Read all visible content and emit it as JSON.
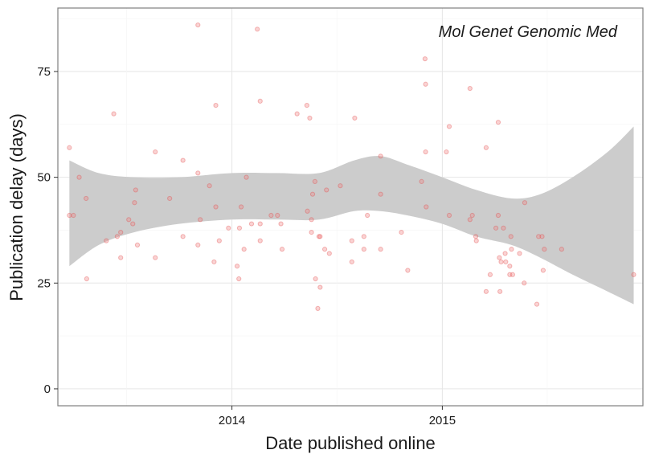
{
  "chart_data": {
    "type": "scatter",
    "title": "Mol Genet Genomic Med",
    "xlabel": "Date published online",
    "ylabel": "Publication delay (days)",
    "x_is_date": true,
    "xlim": [
      "2013-03-05",
      "2015-12-15"
    ],
    "ylim": [
      -4,
      90
    ],
    "x_ticks": [
      {
        "value": "2014-01-01",
        "label": "2014"
      },
      {
        "value": "2015-01-01",
        "label": "2015"
      }
    ],
    "y_ticks": [
      0,
      25,
      50,
      75
    ],
    "grid": true,
    "point_color": "#f08080",
    "band_color": "#cccccc",
    "points": [
      {
        "x": "2013-03-25",
        "y": 57
      },
      {
        "x": "2013-03-25",
        "y": 41
      },
      {
        "x": "2013-04-01",
        "y": 41
      },
      {
        "x": "2013-04-11",
        "y": 50
      },
      {
        "x": "2013-04-23",
        "y": 45
      },
      {
        "x": "2013-04-24",
        "y": 26
      },
      {
        "x": "2013-05-28",
        "y": 35
      },
      {
        "x": "2013-06-10",
        "y": 65
      },
      {
        "x": "2013-06-16",
        "y": 36
      },
      {
        "x": "2013-06-22",
        "y": 31
      },
      {
        "x": "2013-06-22",
        "y": 37
      },
      {
        "x": "2013-07-06",
        "y": 40
      },
      {
        "x": "2013-07-13",
        "y": 39
      },
      {
        "x": "2013-07-16",
        "y": 44
      },
      {
        "x": "2013-07-18",
        "y": 47
      },
      {
        "x": "2013-07-21",
        "y": 34
      },
      {
        "x": "2013-08-21",
        "y": 56
      },
      {
        "x": "2013-08-21",
        "y": 31
      },
      {
        "x": "2013-09-15",
        "y": 45
      },
      {
        "x": "2013-10-08",
        "y": 36
      },
      {
        "x": "2013-10-08",
        "y": 54
      },
      {
        "x": "2013-11-03",
        "y": 86
      },
      {
        "x": "2013-11-03",
        "y": 51
      },
      {
        "x": "2013-11-03",
        "y": 34
      },
      {
        "x": "2013-11-07",
        "y": 40
      },
      {
        "x": "2013-11-23",
        "y": 48
      },
      {
        "x": "2013-12-04",
        "y": 67
      },
      {
        "x": "2013-12-04",
        "y": 43
      },
      {
        "x": "2013-12-10",
        "y": 35
      },
      {
        "x": "2013-12-01",
        "y": 30
      },
      {
        "x": "2013-12-26",
        "y": 38
      },
      {
        "x": "2014-01-10",
        "y": 29
      },
      {
        "x": "2014-01-13",
        "y": 26
      },
      {
        "x": "2014-01-14",
        "y": 38
      },
      {
        "x": "2014-01-17",
        "y": 43
      },
      {
        "x": "2014-01-22",
        "y": 33
      },
      {
        "x": "2014-01-26",
        "y": 50
      },
      {
        "x": "2014-02-04",
        "y": 39
      },
      {
        "x": "2014-02-14",
        "y": 85
      },
      {
        "x": "2014-02-19",
        "y": 35
      },
      {
        "x": "2014-02-19",
        "y": 39
      },
      {
        "x": "2014-02-19",
        "y": 68
      },
      {
        "x": "2014-03-10",
        "y": 41
      },
      {
        "x": "2014-03-21",
        "y": 41
      },
      {
        "x": "2014-03-27",
        "y": 39
      },
      {
        "x": "2014-03-29",
        "y": 33
      },
      {
        "x": "2014-04-24",
        "y": 65
      },
      {
        "x": "2014-05-11",
        "y": 67
      },
      {
        "x": "2014-05-12",
        "y": 42
      },
      {
        "x": "2014-05-16",
        "y": 64
      },
      {
        "x": "2014-05-19",
        "y": 37
      },
      {
        "x": "2014-05-19",
        "y": 40
      },
      {
        "x": "2014-05-21",
        "y": 46
      },
      {
        "x": "2014-05-25",
        "y": 49
      },
      {
        "x": "2014-05-26",
        "y": 26
      },
      {
        "x": "2014-05-30",
        "y": 19
      },
      {
        "x": "2014-06-01",
        "y": 36
      },
      {
        "x": "2014-06-03",
        "y": 36
      },
      {
        "x": "2014-06-03",
        "y": 24
      },
      {
        "x": "2014-06-11",
        "y": 33
      },
      {
        "x": "2014-06-14",
        "y": 47
      },
      {
        "x": "2014-06-19",
        "y": 32
      },
      {
        "x": "2014-07-08",
        "y": 48
      },
      {
        "x": "2014-07-28",
        "y": 35
      },
      {
        "x": "2014-07-28",
        "y": 30
      },
      {
        "x": "2014-08-02",
        "y": 64
      },
      {
        "x": "2014-08-18",
        "y": 36
      },
      {
        "x": "2014-08-18",
        "y": 33
      },
      {
        "x": "2014-08-24",
        "y": 41
      },
      {
        "x": "2014-09-16",
        "y": 55
      },
      {
        "x": "2014-09-16",
        "y": 46
      },
      {
        "x": "2014-09-16",
        "y": 33
      },
      {
        "x": "2014-10-22",
        "y": 37
      },
      {
        "x": "2014-11-02",
        "y": 28
      },
      {
        "x": "2014-11-26",
        "y": 49
      },
      {
        "x": "2014-12-02",
        "y": 78
      },
      {
        "x": "2014-12-03",
        "y": 72
      },
      {
        "x": "2014-12-03",
        "y": 56
      },
      {
        "x": "2014-12-04",
        "y": 43
      },
      {
        "x": "2015-01-08",
        "y": 56
      },
      {
        "x": "2015-01-13",
        "y": 62
      },
      {
        "x": "2015-01-13",
        "y": 41
      },
      {
        "x": "2015-02-18",
        "y": 71
      },
      {
        "x": "2015-02-18",
        "y": 40
      },
      {
        "x": "2015-02-22",
        "y": 41
      },
      {
        "x": "2015-02-28",
        "y": 36
      },
      {
        "x": "2015-03-01",
        "y": 35
      },
      {
        "x": "2015-03-18",
        "y": 57
      },
      {
        "x": "2015-03-18",
        "y": 23
      },
      {
        "x": "2015-03-25",
        "y": 27
      },
      {
        "x": "2015-04-04",
        "y": 38
      },
      {
        "x": "2015-04-08",
        "y": 63
      },
      {
        "x": "2015-04-08",
        "y": 41
      },
      {
        "x": "2015-04-10",
        "y": 31
      },
      {
        "x": "2015-04-11",
        "y": 23
      },
      {
        "x": "2015-04-17",
        "y": 38
      },
      {
        "x": "2015-04-13",
        "y": 30
      },
      {
        "x": "2015-04-20",
        "y": 32
      },
      {
        "x": "2015-04-21",
        "y": 30
      },
      {
        "x": "2015-04-28",
        "y": 29
      },
      {
        "x": "2015-04-28",
        "y": 27
      },
      {
        "x": "2015-04-30",
        "y": 36
      },
      {
        "x": "2015-05-03",
        "y": 27
      },
      {
        "x": "2015-05-01",
        "y": 33
      },
      {
        "x": "2015-05-15",
        "y": 32
      },
      {
        "x": "2015-05-23",
        "y": 25
      },
      {
        "x": "2015-05-24",
        "y": 44
      },
      {
        "x": "2015-06-14",
        "y": 20
      },
      {
        "x": "2015-06-17",
        "y": 36
      },
      {
        "x": "2015-06-23",
        "y": 36
      },
      {
        "x": "2015-06-25",
        "y": 28
      },
      {
        "x": "2015-06-27",
        "y": 33
      },
      {
        "x": "2015-07-27",
        "y": 33
      },
      {
        "x": "2015-11-29",
        "y": 27
      }
    ],
    "smooth_band": [
      {
        "x": "2013-03-25",
        "upper": 54,
        "lower": 29
      },
      {
        "x": "2013-05-15",
        "upper": 51,
        "lower": 34
      },
      {
        "x": "2013-07-15",
        "upper": 50,
        "lower": 37
      },
      {
        "x": "2013-10-01",
        "upper": 50,
        "lower": 39
      },
      {
        "x": "2014-01-01",
        "upper": 51,
        "lower": 40
      },
      {
        "x": "2014-03-20",
        "upper": 51,
        "lower": 40
      },
      {
        "x": "2014-06-01",
        "upper": 51,
        "lower": 40
      },
      {
        "x": "2014-08-01",
        "upper": 54,
        "lower": 42
      },
      {
        "x": "2014-09-15",
        "upper": 55,
        "lower": 42
      },
      {
        "x": "2014-11-01",
        "upper": 53,
        "lower": 41
      },
      {
        "x": "2015-01-01",
        "upper": 50,
        "lower": 39
      },
      {
        "x": "2015-03-01",
        "upper": 47,
        "lower": 36
      },
      {
        "x": "2015-05-01",
        "upper": 45,
        "lower": 34
      },
      {
        "x": "2015-06-20",
        "upper": 46,
        "lower": 31
      },
      {
        "x": "2015-08-15",
        "upper": 50,
        "lower": 27
      },
      {
        "x": "2015-10-15",
        "upper": 56,
        "lower": 23
      },
      {
        "x": "2015-11-29",
        "upper": 62,
        "lower": 20
      }
    ]
  }
}
